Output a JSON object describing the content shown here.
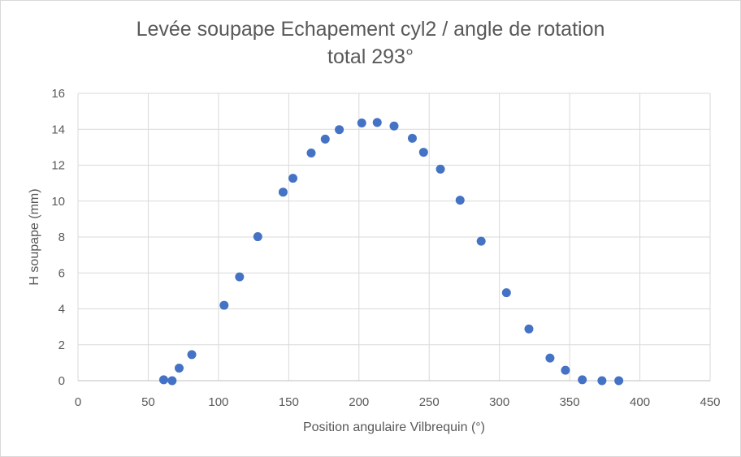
{
  "chart_data": {
    "type": "scatter",
    "title": [
      "Levée soupape Echapement cyl2 / angle de rotation",
      "total 293°"
    ],
    "xlabel": "Position angulaire Vilbrequin (°)",
    "ylabel": "H soupape (mm)",
    "xlim": [
      0,
      450
    ],
    "ylim": [
      0,
      16
    ],
    "xticks": [
      0,
      50,
      100,
      150,
      200,
      250,
      300,
      350,
      400,
      450
    ],
    "yticks": [
      0,
      2,
      4,
      6,
      8,
      10,
      12,
      14,
      16
    ],
    "grid": true,
    "legend": "none",
    "marker_color": "#4472c4",
    "series": [
      {
        "points": [
          [
            61,
            0.05
          ],
          [
            67,
            0.0
          ],
          [
            72,
            0.7
          ],
          [
            81,
            1.45
          ],
          [
            104,
            4.2
          ],
          [
            115,
            5.78
          ],
          [
            128,
            8.02
          ],
          [
            146,
            10.5
          ],
          [
            153,
            11.27
          ],
          [
            166,
            12.68
          ],
          [
            176,
            13.45
          ],
          [
            186,
            13.98
          ],
          [
            202,
            14.35
          ],
          [
            213,
            14.38
          ],
          [
            225,
            14.18
          ],
          [
            238,
            13.5
          ],
          [
            246,
            12.72
          ],
          [
            258,
            11.78
          ],
          [
            272,
            10.05
          ],
          [
            287,
            7.77
          ],
          [
            305,
            4.9
          ],
          [
            321,
            2.88
          ],
          [
            336,
            1.26
          ],
          [
            347,
            0.58
          ],
          [
            359,
            0.05
          ],
          [
            373,
            0.0
          ],
          [
            385,
            0.0
          ]
        ]
      }
    ]
  }
}
